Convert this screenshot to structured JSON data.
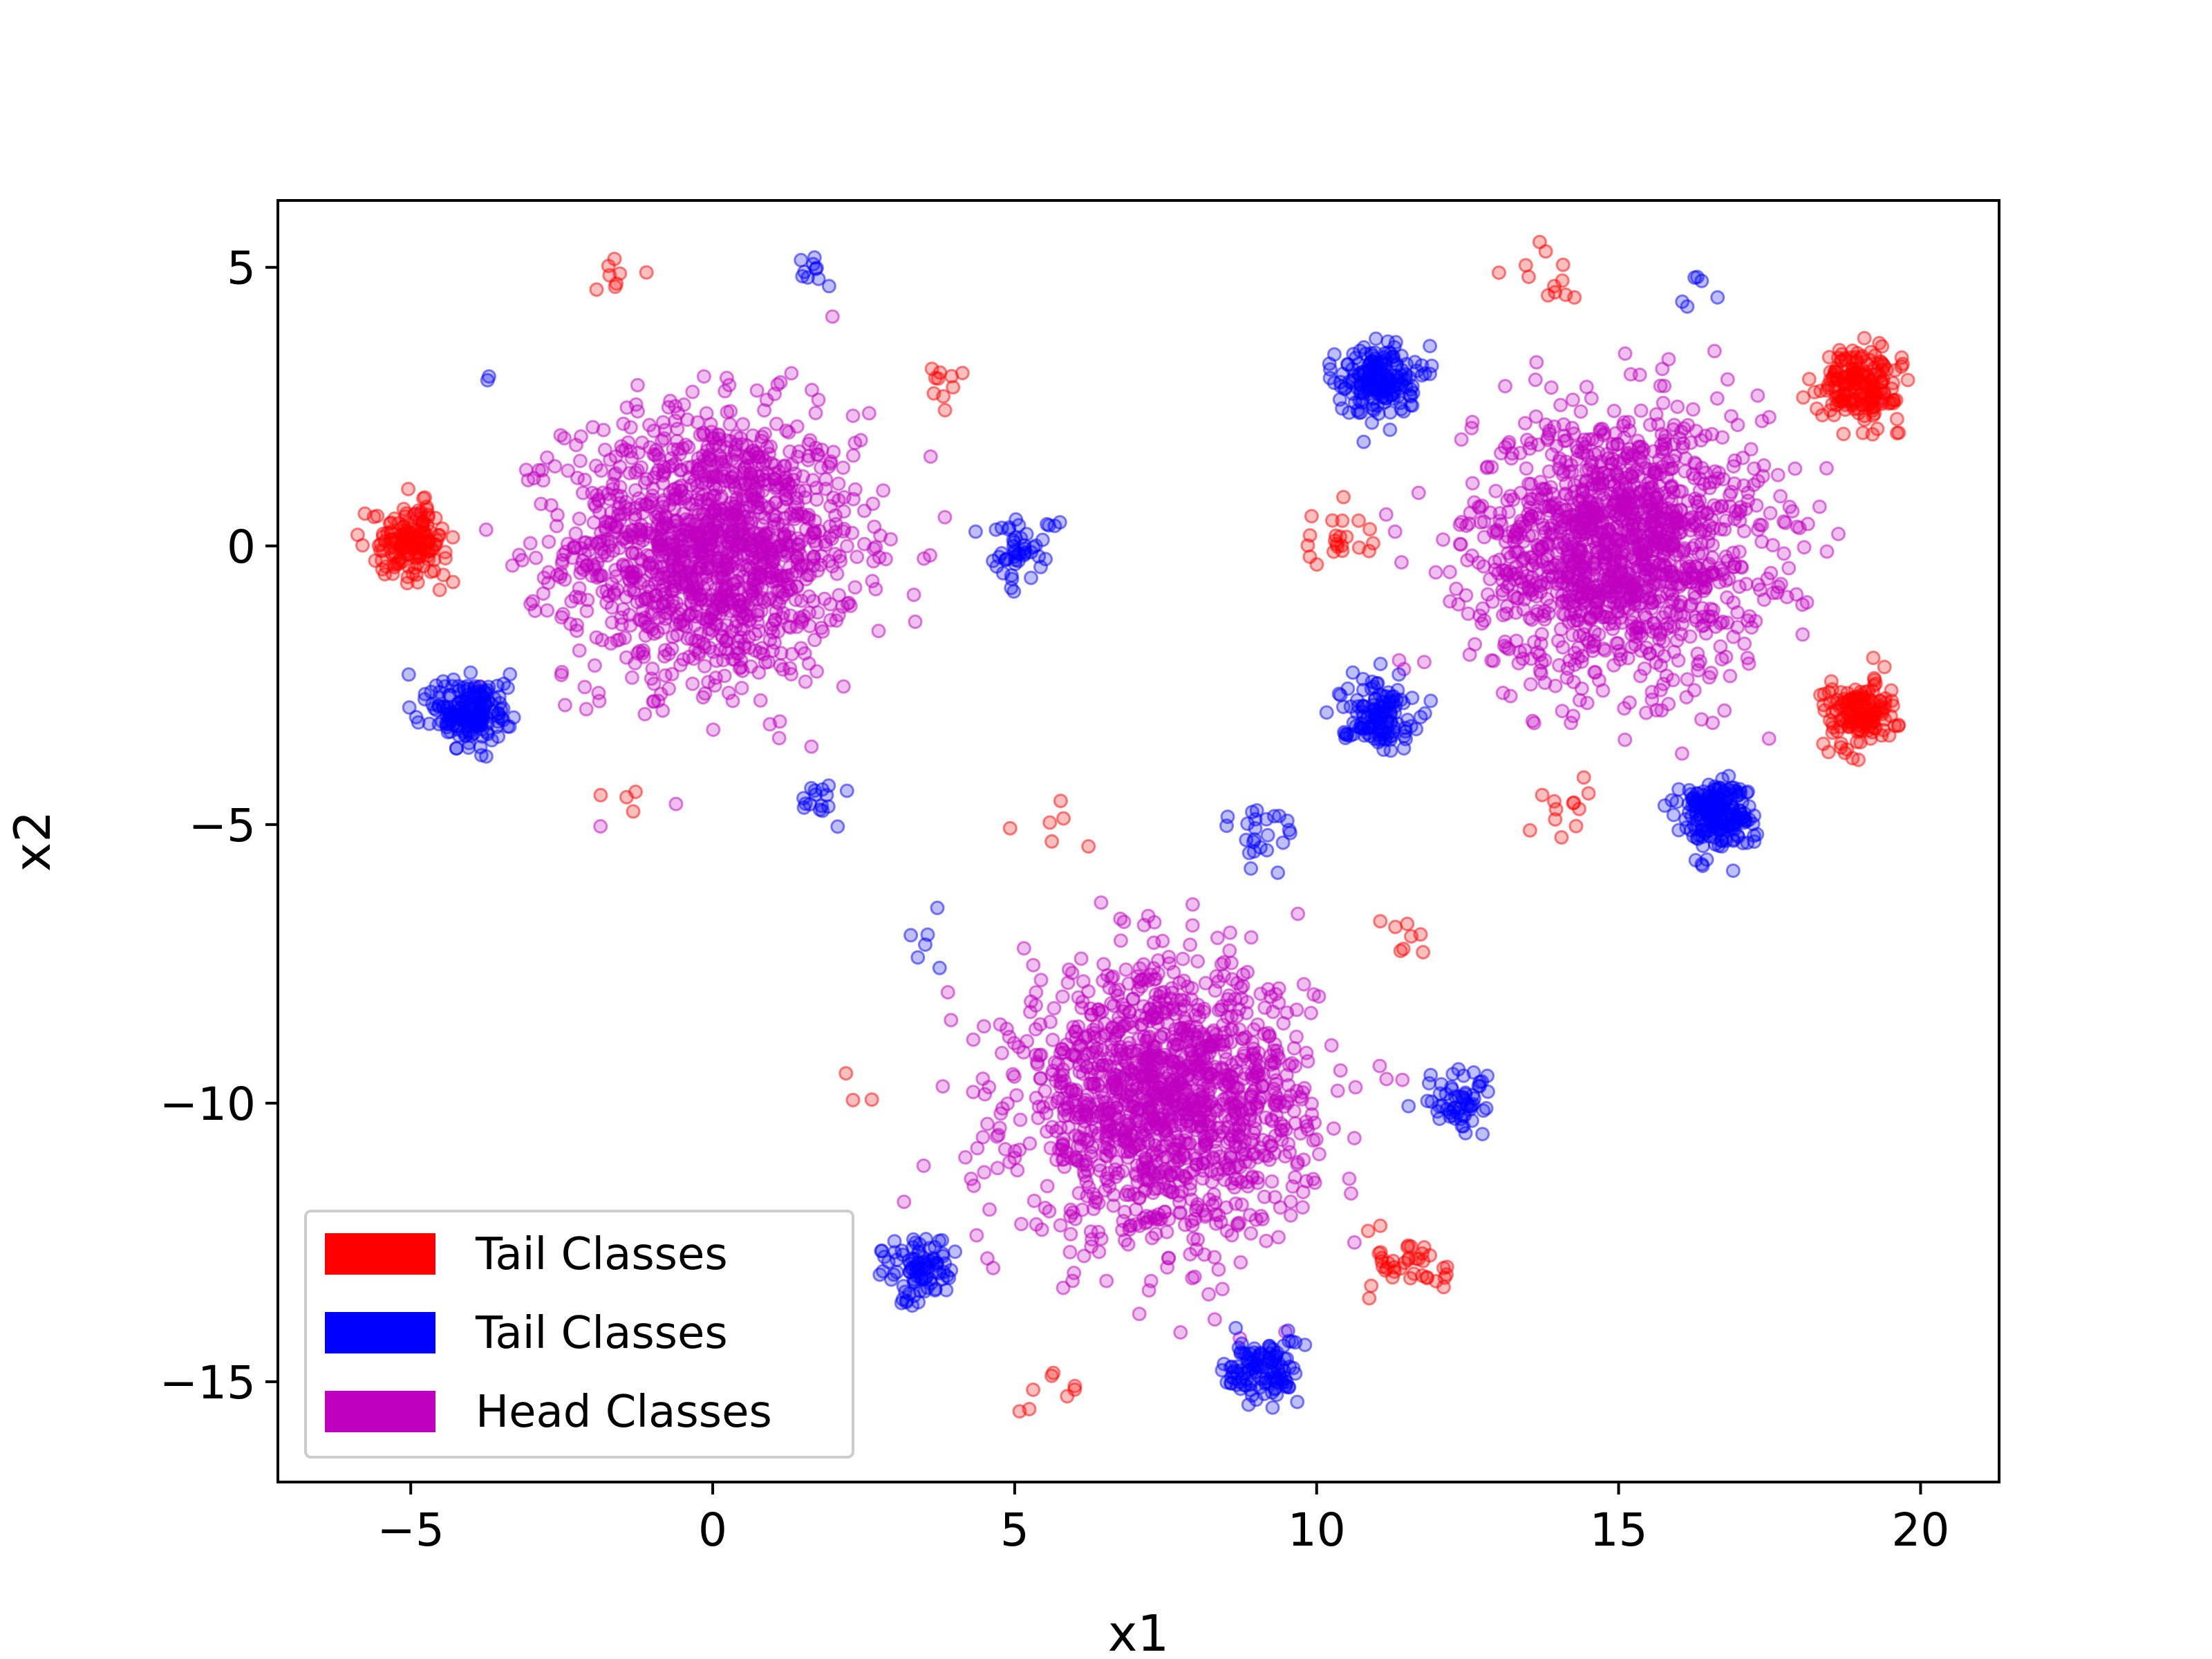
{
  "chart_data": {
    "type": "scatter",
    "title": "",
    "xlabel": "x1",
    "ylabel": "x2",
    "xlim": [
      -7.2,
      21.3
    ],
    "ylim": [
      -16.8,
      6.2
    ],
    "xticks": [
      -5,
      0,
      5,
      10,
      15,
      20
    ],
    "yticks": [
      5,
      0,
      -5,
      -10,
      -15
    ],
    "xtick_labels": [
      "−5",
      "0",
      "5",
      "10",
      "15",
      "20"
    ],
    "ytick_labels": [
      "5",
      "0",
      "−5",
      "−10",
      "−15"
    ],
    "grid": false,
    "legend": {
      "placement": "lower-left",
      "entries": [
        {
          "label": "Tail Classes",
          "color": "#ff0000"
        },
        {
          "label": "Tail Classes",
          "color": "#0000ff"
        },
        {
          "label": "Head Classes",
          "color": "#bf00bf"
        }
      ]
    },
    "series": [
      {
        "name": "Head Classes",
        "color": "#bf00bf",
        "clusters": [
          {
            "center": [
              0.0,
              0.0
            ],
            "spread": 1.2,
            "count": 1400
          },
          {
            "center": [
              15.0,
              0.0
            ],
            "spread": 1.2,
            "count": 1400
          },
          {
            "center": [
              7.5,
              -10.0
            ],
            "spread": 1.2,
            "count": 1400
          }
        ]
      },
      {
        "name": "Tail Classes",
        "color": "#ff0000",
        "clusters": [
          {
            "center": [
              -5.0,
              0.1
            ],
            "spread": 0.3,
            "count": 160
          },
          {
            "center": [
              19.0,
              2.9
            ],
            "spread": 0.32,
            "count": 190
          },
          {
            "center": [
              19.0,
              -3.0
            ],
            "spread": 0.3,
            "count": 150
          },
          {
            "center": [
              10.2,
              0.1
            ],
            "spread": 0.32,
            "count": 22
          },
          {
            "center": [
              13.8,
              4.9
            ],
            "spread": 0.25,
            "count": 12
          },
          {
            "center": [
              -1.6,
              4.8
            ],
            "spread": 0.25,
            "count": 8
          },
          {
            "center": [
              3.7,
              2.9
            ],
            "spread": 0.3,
            "count": 10
          },
          {
            "center": [
              -1.5,
              -4.6
            ],
            "spread": 0.2,
            "count": 4
          },
          {
            "center": [
              14.0,
              -4.8
            ],
            "spread": 0.25,
            "count": 12
          },
          {
            "center": [
              5.8,
              -5.0
            ],
            "spread": 0.3,
            "count": 6
          },
          {
            "center": [
              11.5,
              -7.0
            ],
            "spread": 0.3,
            "count": 8
          },
          {
            "center": [
              11.6,
              -12.9
            ],
            "spread": 0.3,
            "count": 40
          },
          {
            "center": [
              2.5,
              -9.9
            ],
            "spread": 0.2,
            "count": 3
          },
          {
            "center": [
              5.7,
              -15.0
            ],
            "spread": 0.3,
            "count": 8
          }
        ]
      },
      {
        "name": "Tail Classes",
        "color": "#0000ff",
        "clusters": [
          {
            "center": [
              -4.0,
              -3.0
            ],
            "spread": 0.32,
            "count": 190
          },
          {
            "center": [
              11.0,
              3.0
            ],
            "spread": 0.32,
            "count": 190
          },
          {
            "center": [
              11.0,
              -3.0
            ],
            "spread": 0.3,
            "count": 130
          },
          {
            "center": [
              16.6,
              -4.8
            ],
            "spread": 0.3,
            "count": 220
          },
          {
            "center": [
              5.1,
              -0.1
            ],
            "spread": 0.3,
            "count": 50
          },
          {
            "center": [
              1.7,
              5.0
            ],
            "spread": 0.2,
            "count": 10
          },
          {
            "center": [
              1.7,
              -4.6
            ],
            "spread": 0.25,
            "count": 16
          },
          {
            "center": [
              -3.6,
              3.1
            ],
            "spread": 0.1,
            "count": 2
          },
          {
            "center": [
              9.0,
              -5.2
            ],
            "spread": 0.3,
            "count": 24
          },
          {
            "center": [
              3.5,
              -7.0
            ],
            "spread": 0.25,
            "count": 6
          },
          {
            "center": [
              12.4,
              -10.0
            ],
            "spread": 0.3,
            "count": 60
          },
          {
            "center": [
              3.4,
              -13.0
            ],
            "spread": 0.3,
            "count": 90
          },
          {
            "center": [
              9.1,
              -14.8
            ],
            "spread": 0.3,
            "count": 120
          },
          {
            "center": [
              16.6,
              4.6
            ],
            "spread": 0.3,
            "count": 6
          }
        ]
      }
    ]
  }
}
